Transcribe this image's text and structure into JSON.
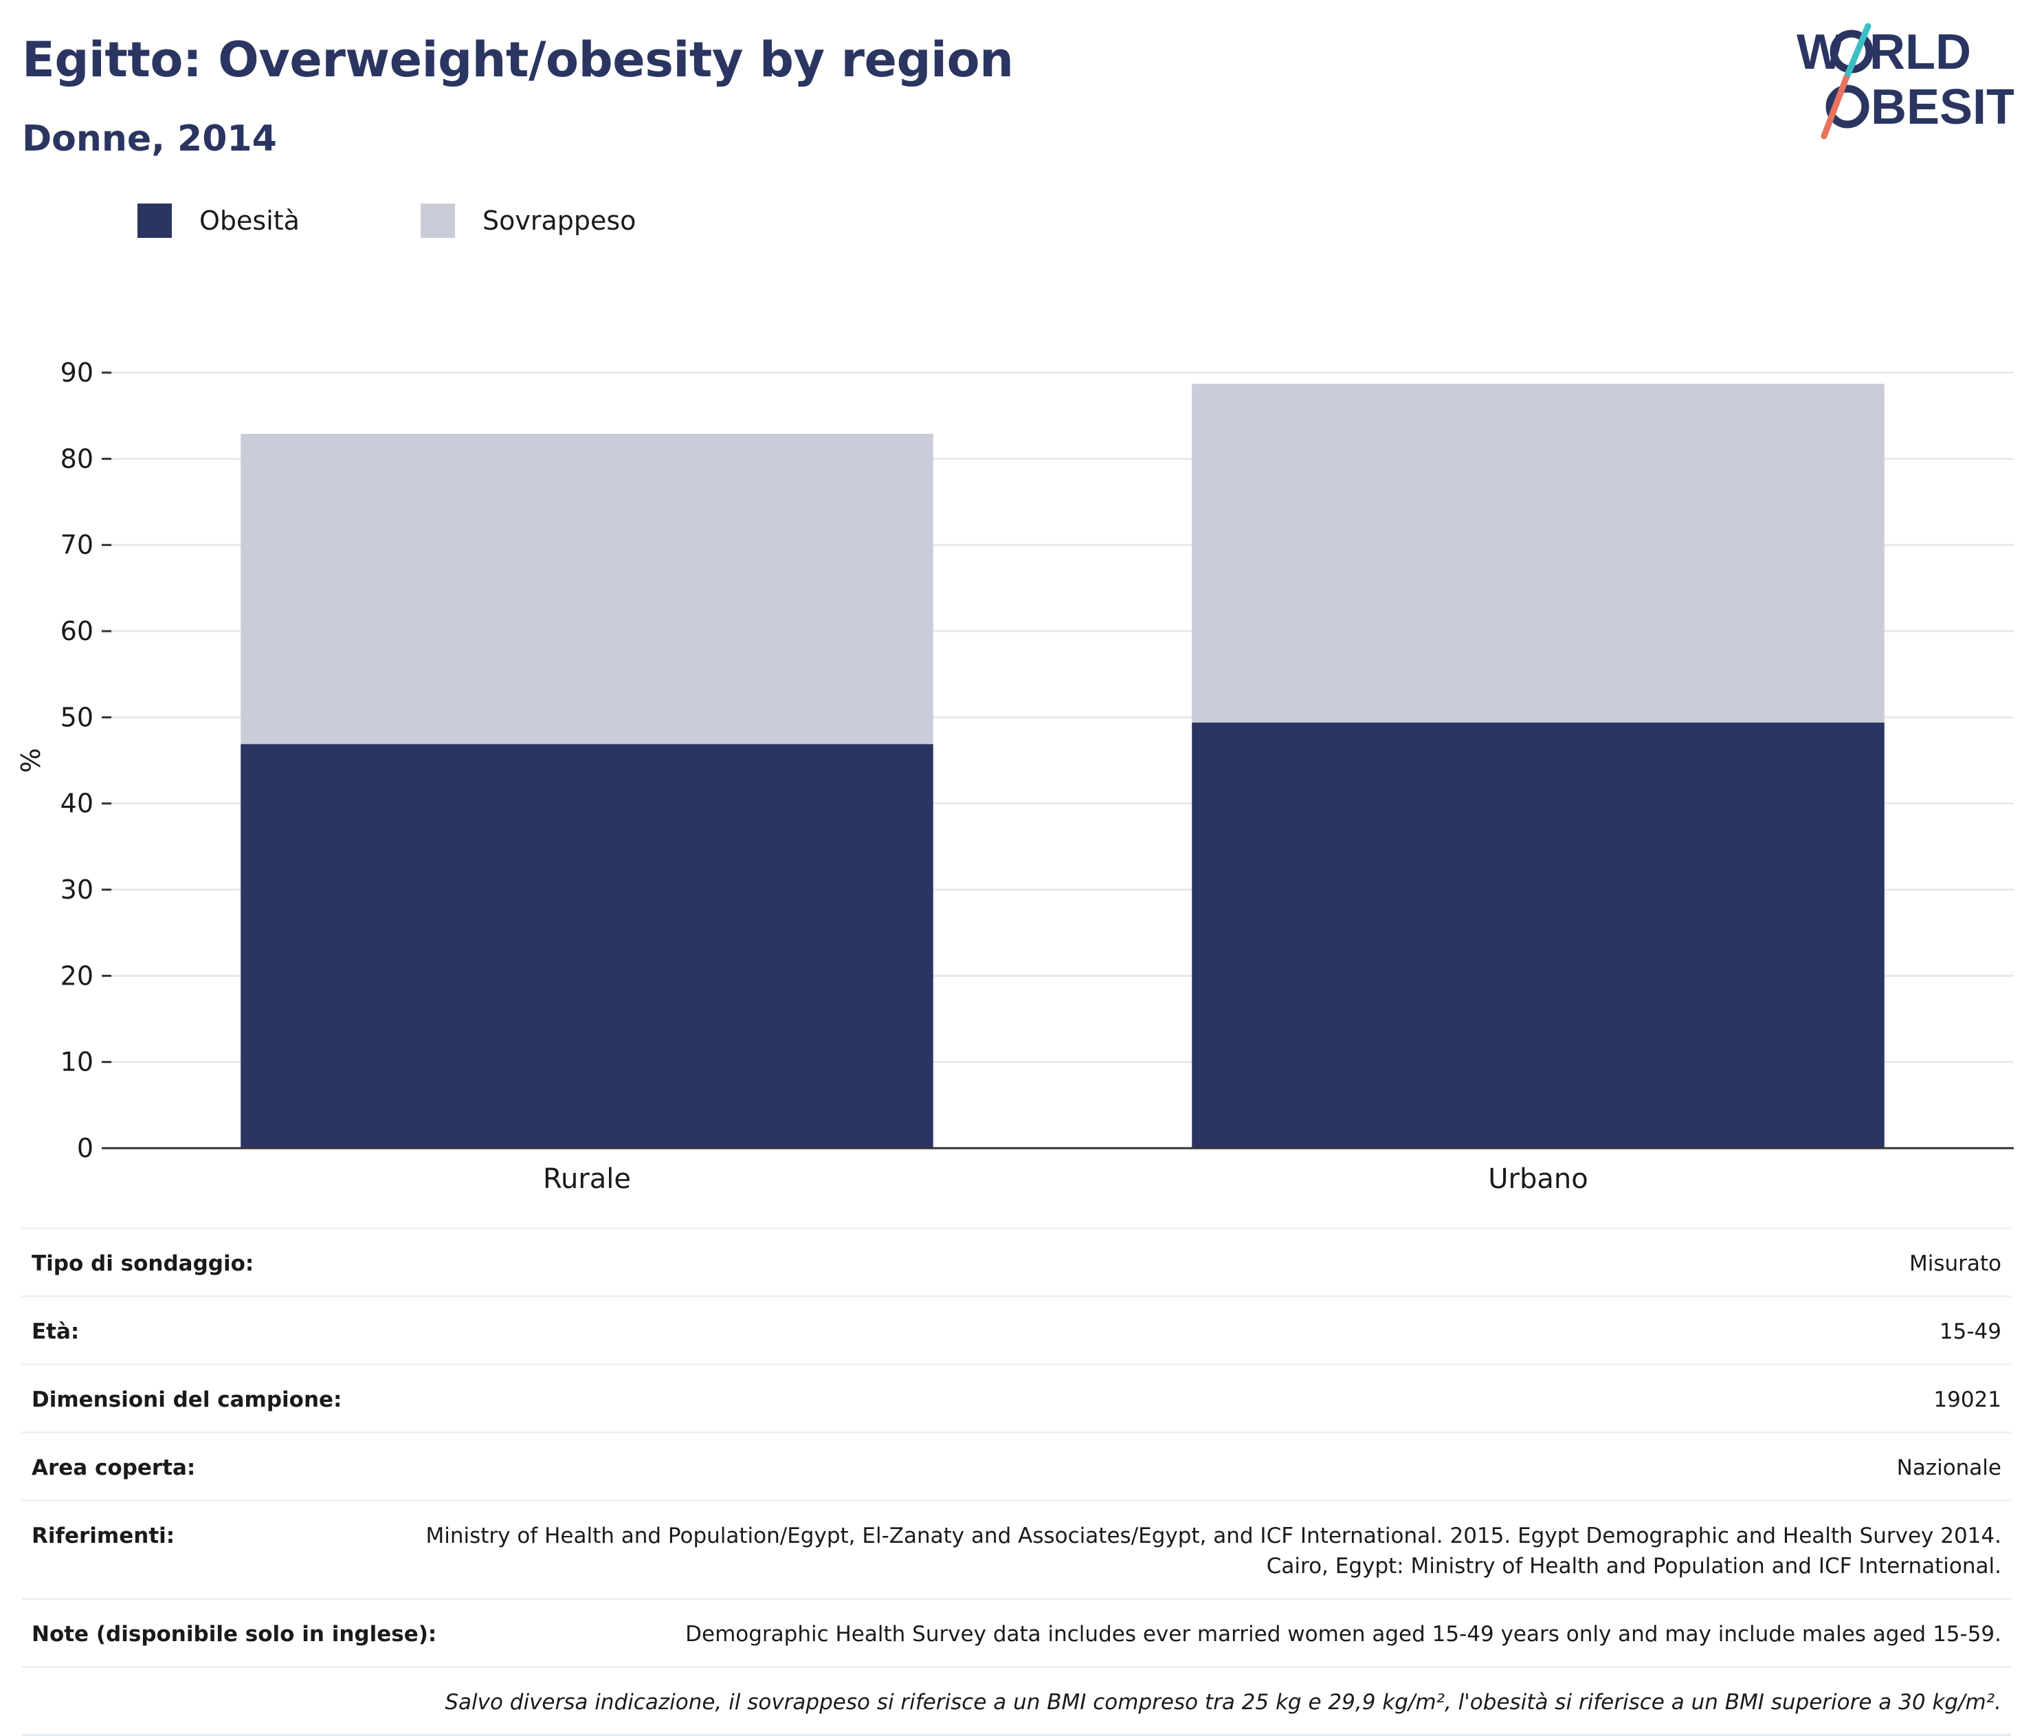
{
  "header": {
    "title": "Egitto: Overweight/obesity by region",
    "subtitle": "Donne, 2014"
  },
  "logo": {
    "line1_a": "W",
    "line1_b": "RLD",
    "line2_a": "O",
    "line2_b": "BESITY",
    "colors": {
      "text": "#2b3561",
      "slash_top": "#3bbfc4",
      "slash_bottom": "#e8735f"
    }
  },
  "colors": {
    "obesity": "#2b3561",
    "overweight": "#cacdd8",
    "grid": "#e8e8e8",
    "axis": "#333333"
  },
  "chart_data": {
    "type": "bar",
    "stacked": true,
    "categories": [
      "Rurale",
      "Urbano"
    ],
    "series": [
      {
        "name": "Obesità",
        "color": "#2b3561",
        "values": [
          46.9,
          49.4
        ]
      },
      {
        "name": "Sovrappeso",
        "color": "#cacdd8",
        "values": [
          36.0,
          39.3
        ]
      }
    ],
    "ylabel": "%",
    "ylim": [
      0,
      90
    ],
    "yticks": [
      0,
      10,
      20,
      30,
      40,
      50,
      60,
      70,
      80,
      90
    ],
    "grid": true,
    "legend_position": "top-left"
  },
  "info_table": [
    {
      "label": "Tipo di sondaggio:",
      "value": "Misurato"
    },
    {
      "label": "Età:",
      "value": "15-49"
    },
    {
      "label": "Dimensioni del campione:",
      "value": "19021"
    },
    {
      "label": "Area coperta:",
      "value": "Nazionale"
    },
    {
      "label": "Riferimenti:",
      "value": "Ministry of Health and Population/Egypt, El-Zanaty and Associates/Egypt, and ICF International. 2015. Egypt Demographic and Health Survey 2014. Cairo, Egypt: Ministry of Health and Population and ICF International."
    },
    {
      "label": "Note (disponibile solo in inglese):",
      "value": "Demographic Health Survey data includes ever married women aged 15-49 years only and may include males aged 15-59."
    }
  ],
  "footnote": "Salvo diversa indicazione, il sovrappeso si riferisce a un BMI compreso tra 25 kg e 29,9 kg/m², l'obesità si riferisce a un BMI superiore a 30 kg/m²."
}
